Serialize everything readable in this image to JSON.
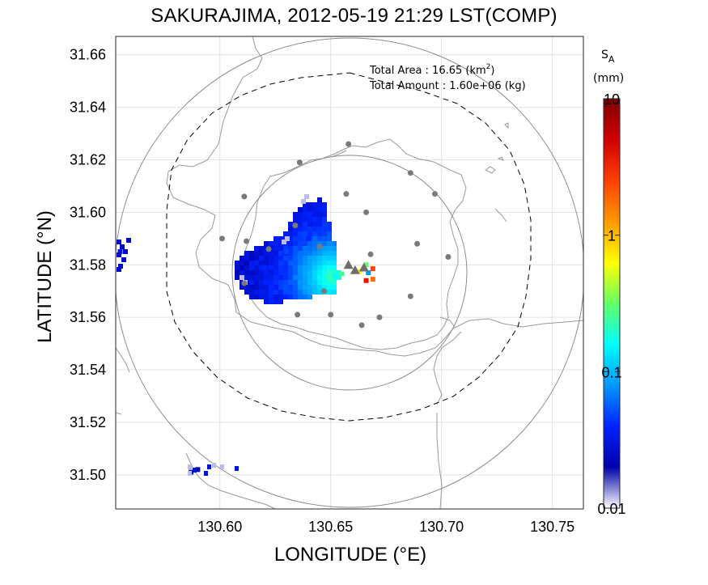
{
  "title": "SAKURAJIMA, 2012-05-19 21:29 LST(COMP)",
  "xlabel": "LONGITUDE (°E)",
  "ylabel": "LATITUDE (°N)",
  "stats": {
    "area_label": "Total Area   : 16.65 (km",
    "area_sup": "2",
    "area_close": ")",
    "amount_label": "Total Amount : 1.60e+06 (kg)"
  },
  "colorbar": {
    "symbol": "S",
    "subscript": "A",
    "unit": "(mm)",
    "scale": "log",
    "range": [
      0.01,
      10
    ],
    "ticks": [
      "10",
      "1",
      "0.1",
      "0.01"
    ],
    "colors": [
      "#800000",
      "#d00000",
      "#ff4000",
      "#ff9900",
      "#ffff00",
      "#66ff66",
      "#00ffff",
      "#0099ff",
      "#0022ff",
      "#0000aa",
      "#ffffff"
    ]
  },
  "chart_data": {
    "type": "heatmap",
    "title": "SAKURAJIMA, 2012-05-19 21:29 LST(COMP)",
    "xlabel": "LONGITUDE (°E)",
    "ylabel": "LATITUDE (°N)",
    "xlim": [
      130.553,
      130.764
    ],
    "ylim": [
      31.487,
      31.667
    ],
    "xticks": [
      "130.60",
      "130.65",
      "130.70",
      "130.75"
    ],
    "yticks": [
      "31.66",
      "31.64",
      "31.62",
      "31.60",
      "31.58",
      "31.56",
      "31.54",
      "31.52",
      "31.50"
    ],
    "grid": true,
    "vents": [
      {
        "lon": 130.658,
        "lat": 31.58
      },
      {
        "lon": 130.661,
        "lat": 31.578
      },
      {
        "lon": 130.665,
        "lat": 31.579
      }
    ],
    "stations": [
      {
        "lon": 130.658,
        "lat": 31.626
      },
      {
        "lon": 130.636,
        "lat": 31.619
      },
      {
        "lon": 130.686,
        "lat": 31.615
      },
      {
        "lon": 130.657,
        "lat": 31.607
      },
      {
        "lon": 130.611,
        "lat": 31.606
      },
      {
        "lon": 130.697,
        "lat": 31.607
      },
      {
        "lon": 130.666,
        "lat": 31.6
      },
      {
        "lon": 130.634,
        "lat": 31.595
      },
      {
        "lon": 130.601,
        "lat": 31.59
      },
      {
        "lon": 130.612,
        "lat": 31.589
      },
      {
        "lon": 130.689,
        "lat": 31.588
      },
      {
        "lon": 130.622,
        "lat": 31.586
      },
      {
        "lon": 130.645,
        "lat": 31.587
      },
      {
        "lon": 130.668,
        "lat": 31.584
      },
      {
        "lon": 130.703,
        "lat": 31.583
      },
      {
        "lon": 130.611,
        "lat": 31.573
      },
      {
        "lon": 130.647,
        "lat": 31.57
      },
      {
        "lon": 130.686,
        "lat": 31.568
      },
      {
        "lon": 130.635,
        "lat": 31.561
      },
      {
        "lon": 130.65,
        "lat": 31.561
      },
      {
        "lon": 130.672,
        "lat": 31.56
      },
      {
        "lon": 130.664,
        "lat": 31.557
      }
    ],
    "ash_cells_sa_mm": [
      {
        "lon": 130.655,
        "lat": 31.5765,
        "value": 0.25
      },
      {
        "lon": 130.652,
        "lat": 31.5755,
        "value": 0.15
      },
      {
        "lon": 130.663,
        "lat": 31.5775,
        "value": 0.6
      },
      {
        "lon": 130.666,
        "lat": 31.58,
        "value": 0.3
      },
      {
        "lon": 130.669,
        "lat": 31.5785,
        "value": 2.5
      },
      {
        "lon": 130.669,
        "lat": 31.5745,
        "value": 1.8
      },
      {
        "lon": 130.666,
        "lat": 31.574,
        "value": 4.0
      },
      {
        "lon": 130.667,
        "lat": 31.577,
        "value": 0.08
      },
      {
        "lon": 130.63,
        "lat": 31.585,
        "value": 0.05
      },
      {
        "lon": 130.62,
        "lat": 31.579,
        "value": 0.04
      },
      {
        "lon": 130.64,
        "lat": 31.59,
        "value": 0.04
      },
      {
        "lon": 130.555,
        "lat": 31.585,
        "value": 0.03
      },
      {
        "lon": 130.587,
        "lat": 31.501,
        "value": 0.03
      },
      {
        "lon": 130.59,
        "lat": 31.502,
        "value": 0.02
      }
    ]
  }
}
